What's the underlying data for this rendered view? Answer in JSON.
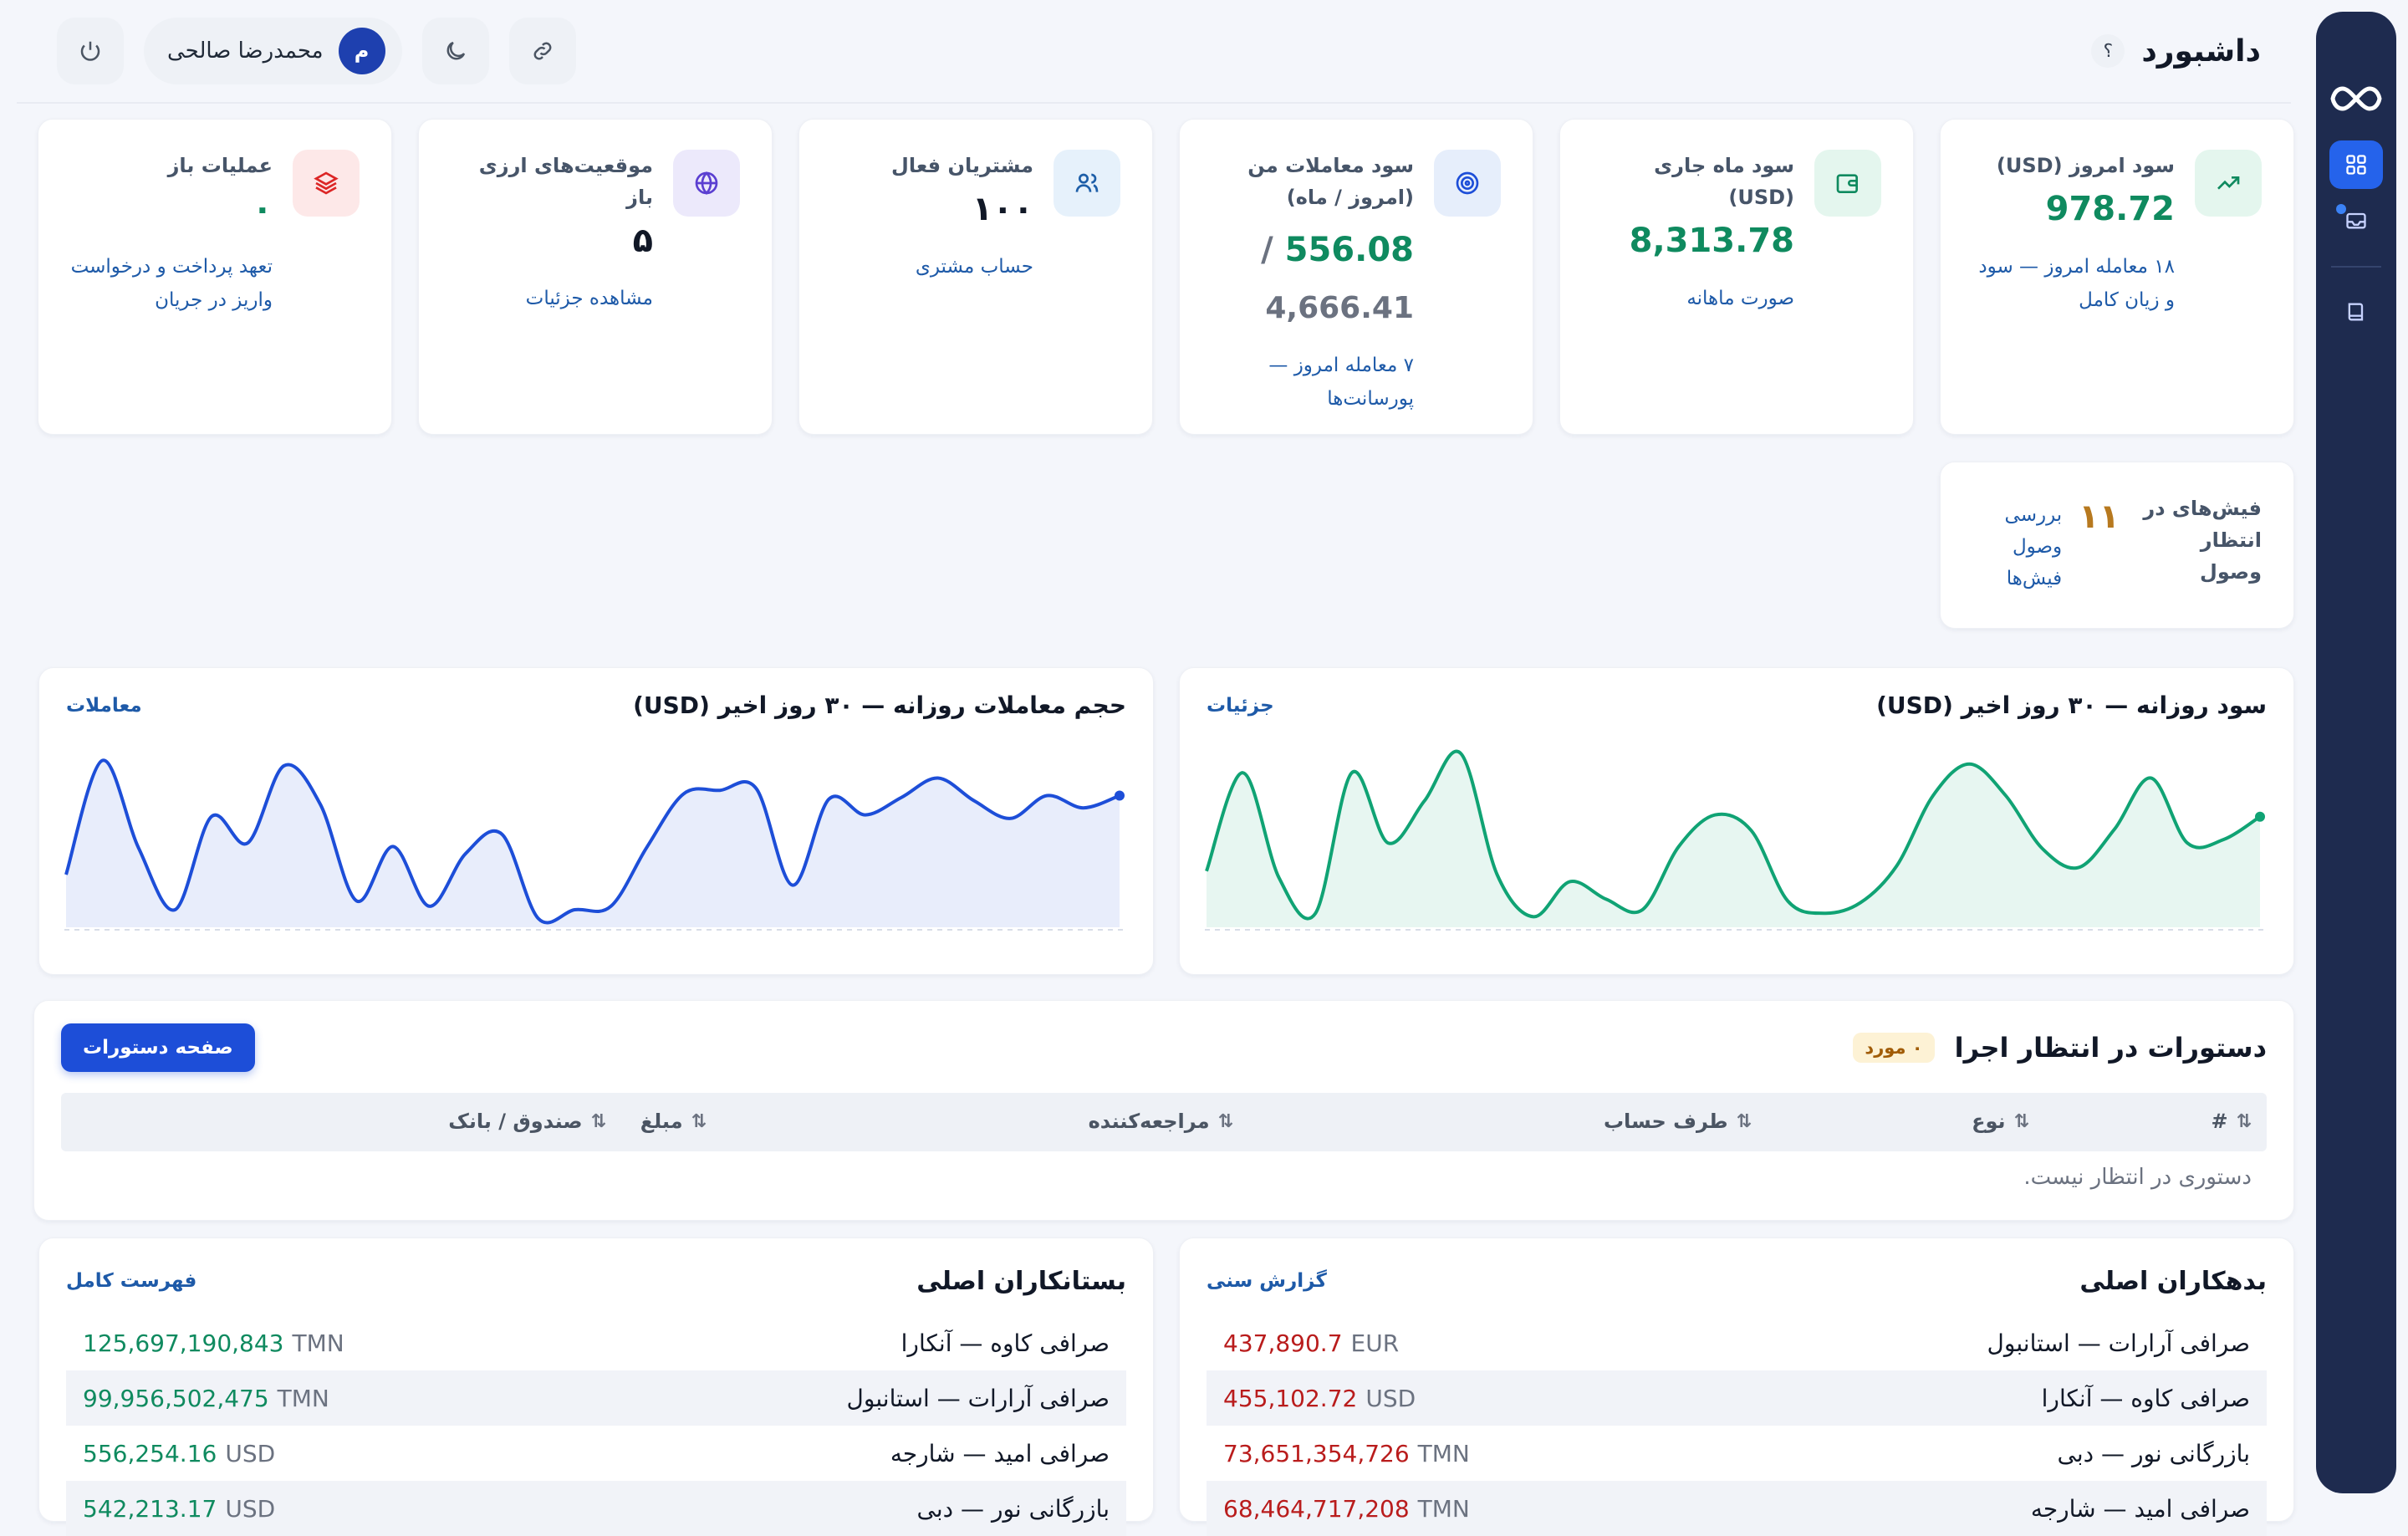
{
  "header": {
    "title": "داشبورد",
    "help": "؟",
    "user_name": "محمدرضا صالحی",
    "avatar_initial": "م"
  },
  "stats": [
    {
      "label": "سود امروز (USD)",
      "value": "978.72",
      "sub": "۱۸ معامله امروز — سود و زیان کامل",
      "icon": "trending-up-icon",
      "icon_bg": "#e4f6ee",
      "icon_color": "#0f8a5f"
    },
    {
      "label": "سود ماه جاری (USD)",
      "value": "8,313.78",
      "sub": "صورت ماهانه",
      "icon": "wallet-icon",
      "icon_bg": "#e4f6ee",
      "icon_color": "#0f8a5f"
    },
    {
      "label": "سود معاملات من (امروز / ماه)",
      "value": "556.08",
      "value_sep": "/",
      "value2": "4,666.41",
      "sub": "۷ معامله امروز — پورسانت‌ها",
      "icon": "target-icon",
      "icon_bg": "#e6eefb",
      "icon_color": "#1d4ed8"
    },
    {
      "label": "مشتریان فعال",
      "value": "۱۰۰",
      "sub": "حساب مشتری",
      "icon": "users-icon",
      "icon_bg": "#e6f1fb",
      "icon_color": "#1d5ea8"
    },
    {
      "label": "موقعیت‌های ارزی باز",
      "value": "۵",
      "sub": "مشاهده جزئیات",
      "icon": "globe-icon",
      "icon_bg": "#ece9fb",
      "icon_color": "#5b3fd1"
    },
    {
      "label": "عملیات باز",
      "value": "۰",
      "sub": "تعهد پرداخت و درخواست واریز در جریان",
      "icon": "layers-icon",
      "icon_bg": "#fde8e8",
      "icon_color": "#dc2626"
    }
  ],
  "receipts": {
    "label": "فیش‌های در انتظار وصول",
    "count": "۱۱",
    "link": "بررسی وصول فیش‌ها"
  },
  "charts": {
    "profit": {
      "title": "سود روزانه — ۳۰ روز اخیر (USD)",
      "link": "جزئیات"
    },
    "volume": {
      "title": "حجم معاملات روزانه — ۳۰ روز اخیر (USD)",
      "link": "معاملات"
    }
  },
  "chart_data": [
    {
      "type": "area",
      "title": "سود روزانه — ۳۰ روز اخیر (USD)",
      "color": "#10a374",
      "x": [
        1,
        2,
        3,
        4,
        5,
        6,
        7,
        8,
        9,
        10,
        11,
        12,
        13,
        14,
        15,
        16,
        17,
        18,
        19,
        20,
        21,
        22,
        23,
        24,
        25,
        26,
        27,
        28,
        29,
        30
      ],
      "values": [
        0.32,
        0.88,
        0.28,
        0.08,
        0.88,
        0.48,
        0.72,
        0.99,
        0.3,
        0.06,
        0.26,
        0.16,
        0.1,
        0.46,
        0.64,
        0.55,
        0.15,
        0.08,
        0.14,
        0.35,
        0.75,
        0.93,
        0.75,
        0.45,
        0.34,
        0.56,
        0.85,
        0.48,
        0.5,
        0.63
      ]
    },
    {
      "type": "area",
      "title": "حجم معاملات روزانه — ۳۰ روز اخیر (USD)",
      "color": "#1d4ed8",
      "x": [
        1,
        2,
        3,
        4,
        5,
        6,
        7,
        8,
        9,
        10,
        11,
        12,
        13,
        14,
        15,
        16,
        17,
        18,
        19,
        20,
        21,
        22,
        23,
        24,
        25,
        26,
        27,
        28,
        29,
        30
      ],
      "values": [
        0.3,
        0.95,
        0.45,
        0.1,
        0.63,
        0.48,
        0.92,
        0.7,
        0.15,
        0.46,
        0.12,
        0.42,
        0.53,
        0.05,
        0.1,
        0.12,
        0.46,
        0.76,
        0.78,
        0.79,
        0.24,
        0.73,
        0.64,
        0.74,
        0.85,
        0.72,
        0.62,
        0.75,
        0.68,
        0.75
      ]
    }
  ],
  "orders": {
    "title": "دستورات در انتظار اجرا",
    "badge": "۰ مورد",
    "button": "صفحه دستورات",
    "columns": [
      "#",
      "نوع",
      "طرف حساب",
      "مراجعه‌کننده",
      "مبلغ",
      "صندوق / بانک"
    ],
    "sort_icon": "⇅",
    "empty": "دستوری در انتظار نیست."
  },
  "debtors": {
    "title": "بدهکاران اصلی",
    "link": "گزارش سنی",
    "rows": [
      {
        "name": "صرافی آرارات — استانبول",
        "amount": "437,890.7",
        "currency": "EUR"
      },
      {
        "name": "صرافی کاوه — آنکارا",
        "amount": "455,102.72",
        "currency": "USD"
      },
      {
        "name": "بازرگانی نور — دبی",
        "amount": "73,651,354,726",
        "currency": "TMN"
      },
      {
        "name": "صرافی امید — شارجه",
        "amount": "68,464,717,208",
        "currency": "TMN"
      }
    ]
  },
  "creditors": {
    "title": "بستانکاران اصلی",
    "link": "فهرست کامل",
    "rows": [
      {
        "name": "صرافی کاوه — آنکارا",
        "amount": "125,697,190,843",
        "currency": "TMN"
      },
      {
        "name": "صرافی آرارات — استانبول",
        "amount": "99,956,502,475",
        "currency": "TMN"
      },
      {
        "name": "صرافی امید — شارجه",
        "amount": "556,254.16",
        "currency": "USD"
      },
      {
        "name": "بازرگانی نور — دبی",
        "amount": "542,213.17",
        "currency": "USD"
      }
    ]
  }
}
